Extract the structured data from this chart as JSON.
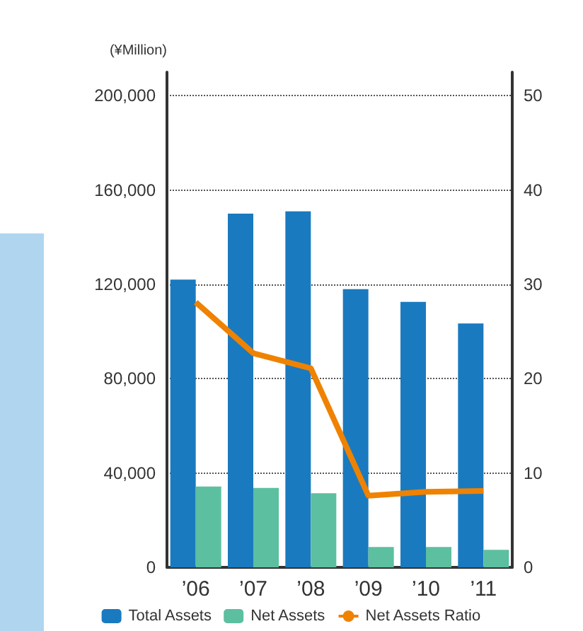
{
  "chart_data": {
    "type": "bar",
    "ylabel": "(¥Million)",
    "categories": [
      "’06",
      "’07",
      "’08",
      "’09",
      "’10",
      "’11"
    ],
    "series": [
      {
        "name": "Total Assets",
        "color": "#1a7abf",
        "values": [
          122000,
          150000,
          151000,
          118000,
          112600,
          103400
        ]
      },
      {
        "name": "Net Assets",
        "color": "#5cbfa0",
        "values": [
          34300,
          33700,
          31400,
          8600,
          8600,
          7400
        ]
      },
      {
        "name": "Net Assets Ratio",
        "type": "line",
        "axis": "y2",
        "color": "#ef8200",
        "values": [
          28.1,
          22.7,
          21.1,
          7.6,
          8.0,
          8.1
        ]
      }
    ],
    "ylim": [
      0,
      210000
    ],
    "yticks": [
      0,
      {
        "value": 40000,
        "label": "40,000"
      },
      {
        "value": 80000,
        "label": "80,000"
      },
      {
        "value": 120000,
        "label": "120,000"
      },
      {
        "value": 160000,
        "label": "160,000"
      },
      {
        "value": 200000,
        "label": "200,000"
      }
    ],
    "y2lim": [
      0,
      52.5
    ],
    "y2ticks": [
      0,
      10,
      20,
      30,
      40,
      50
    ],
    "grid": "y",
    "line_style": "solid",
    "marker": "none",
    "legend": "bottom"
  }
}
